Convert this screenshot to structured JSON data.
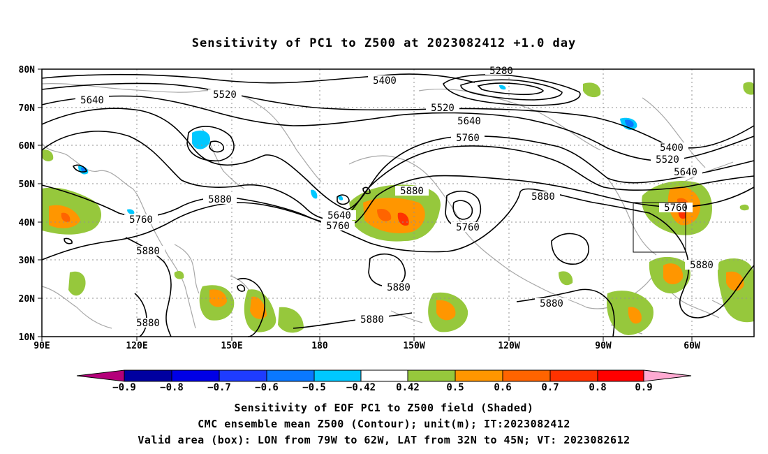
{
  "title": "Sensitivity of PC1 to Z500 at 2023082412 +1.0 day",
  "axes": {
    "lat_ticks": [
      "80N",
      "70N",
      "60N",
      "50N",
      "40N",
      "30N",
      "20N",
      "10N"
    ],
    "lon_ticks": [
      "90E",
      "120E",
      "150E",
      "180",
      "150W",
      "120W",
      "90W",
      "60W"
    ]
  },
  "contour_labels": [
    "5280",
    "5400",
    "5520",
    "5640",
    "5520",
    "5640",
    "5760",
    "5400",
    "5520",
    "5640",
    "5760",
    "5880",
    "5640",
    "5760",
    "5880",
    "5760",
    "5880",
    "5760",
    "5880",
    "5880",
    "5880",
    "5880",
    "5880",
    "5880"
  ],
  "colorbar": {
    "colors": [
      "#b4007a",
      "#0000a0",
      "#0000e6",
      "#1e3cff",
      "#0a78ff",
      "#00c8ff",
      "#ffffff",
      "#96c83c",
      "#ff9600",
      "#ff6400",
      "#ff3200",
      "#ff0000",
      "#ffaad2"
    ],
    "labels": [
      "−0.9",
      "−0.8",
      "−0.7",
      "−0.6",
      "−0.5",
      "−0.42",
      "0.42",
      "0.5",
      "0.6",
      "0.7",
      "0.8",
      "0.9"
    ]
  },
  "caption": {
    "line1": "Sensitivity of EOF PC1 to Z500 field (Shaded)",
    "line2": "CMC ensemble mean Z500 (Contour); unit(m); IT:2023082412",
    "line3": "Valid area (box): LON from 79W to 62W, LAT from 32N to 45N; VT: 2023082612"
  },
  "valid_box": {
    "lon_from": "79W",
    "lon_to": "62W",
    "lat_from": "32N",
    "lat_to": "45N"
  }
}
